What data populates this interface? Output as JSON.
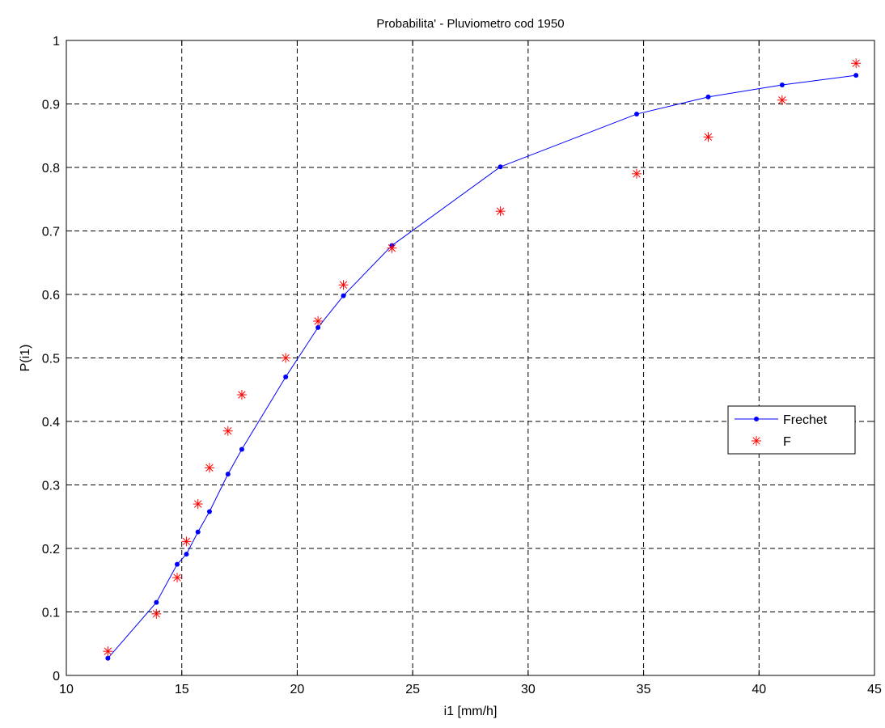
{
  "chart_data": {
    "type": "line",
    "title": "Probabilita' - Pluviometro cod 1950",
    "xlabel": "i1 [mm/h]",
    "ylabel": "P(i1)",
    "xlim": [
      10,
      45
    ],
    "ylim": [
      0,
      1
    ],
    "xticks": [
      "10",
      "15",
      "20",
      "25",
      "30",
      "35",
      "40",
      "45"
    ],
    "yticks": [
      "0",
      "0.1",
      "0.2",
      "0.3",
      "0.4",
      "0.5",
      "0.6",
      "0.7",
      "0.8",
      "0.9",
      "1"
    ],
    "grid": true,
    "legend_position": "right",
    "series": [
      {
        "name": "Frechet",
        "style": "line-dot",
        "color": "#0000ff",
        "x": [
          11.8,
          13.9,
          14.8,
          15.2,
          15.7,
          16.2,
          17.0,
          17.6,
          19.5,
          20.9,
          22.0,
          24.1,
          28.8,
          34.7,
          37.8,
          41.0,
          44.2
        ],
        "y": [
          0.027,
          0.115,
          0.175,
          0.191,
          0.226,
          0.258,
          0.317,
          0.356,
          0.47,
          0.548,
          0.598,
          0.677,
          0.801,
          0.884,
          0.911,
          0.93,
          0.945
        ]
      },
      {
        "name": "F",
        "style": "asterisk",
        "color": "#ff0000",
        "x": [
          11.8,
          13.9,
          14.8,
          15.2,
          15.7,
          16.2,
          17.0,
          17.6,
          19.5,
          20.9,
          22.0,
          24.1,
          28.8,
          34.7,
          37.8,
          41.0,
          44.2
        ],
        "y": [
          0.038,
          0.097,
          0.154,
          0.211,
          0.27,
          0.327,
          0.385,
          0.442,
          0.5,
          0.558,
          0.615,
          0.673,
          0.731,
          0.79,
          0.848,
          0.906,
          0.964
        ]
      }
    ]
  }
}
